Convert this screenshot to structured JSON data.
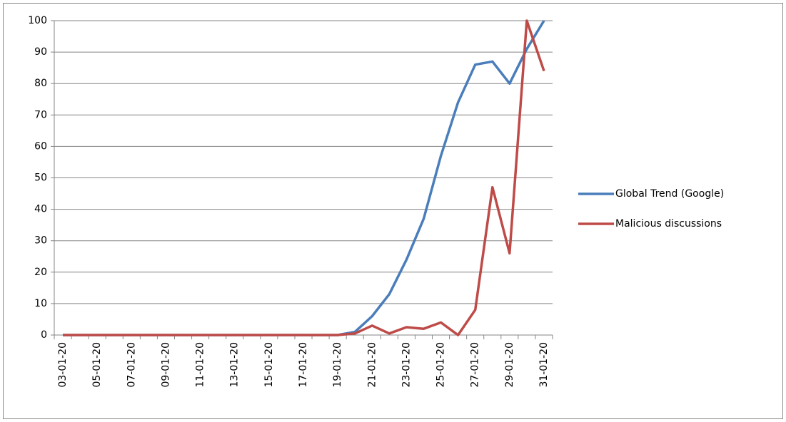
{
  "chart_data": {
    "type": "line",
    "categories": [
      "03-01-20",
      null,
      "05-01-20",
      null,
      "07-01-20",
      null,
      "09-01-20",
      null,
      "11-01-20",
      null,
      "13-01-20",
      null,
      "15-01-20",
      null,
      "17-01-20",
      null,
      "19-01-20",
      null,
      "21-01-20",
      null,
      "23-01-20",
      null,
      "25-01-20",
      null,
      "27-01-20",
      null,
      "29-01-20",
      null,
      "31-01-20"
    ],
    "series": [
      {
        "name": "Global Trend (Google)",
        "color": "#4a7ebb",
        "values": [
          0,
          0,
          0,
          0,
          0,
          0,
          0,
          0,
          0,
          0,
          0,
          0,
          0,
          0,
          0,
          0,
          0,
          1,
          6,
          13,
          24,
          37,
          57,
          74,
          86,
          87,
          80,
          91,
          100
        ]
      },
      {
        "name": "Malicious discussions",
        "color": "#be4b48",
        "values": [
          0,
          0,
          0,
          0,
          0,
          0,
          0,
          0,
          0,
          0,
          0,
          0,
          0,
          0,
          0,
          0,
          0,
          0.5,
          3,
          0.5,
          2.5,
          2,
          4,
          0,
          8,
          47,
          26,
          100,
          84
        ]
      }
    ],
    "ylim": [
      0,
      100
    ],
    "yticks": [
      0,
      10,
      20,
      30,
      40,
      50,
      60,
      70,
      80,
      90,
      100
    ],
    "grid": true,
    "legend": "right"
  }
}
